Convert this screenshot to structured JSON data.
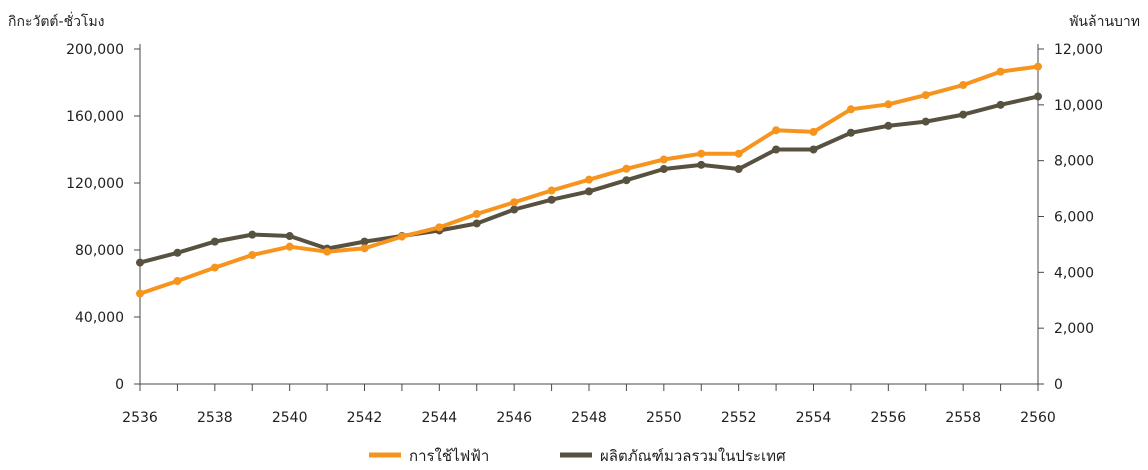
{
  "chart_data": {
    "type": "line",
    "title": "",
    "xlabel": "",
    "ylabel_left": "กิกะวัตต์-ชั่วโมง",
    "ylabel_right": "พันล้านบาท",
    "x": [
      2536,
      2537,
      2538,
      2539,
      2540,
      2541,
      2542,
      2543,
      2544,
      2545,
      2546,
      2547,
      2548,
      2549,
      2550,
      2551,
      2552,
      2553,
      2554,
      2555,
      2556,
      2557,
      2558,
      2559,
      2560
    ],
    "x_tick_labels": [
      "2536",
      "2538",
      "2540",
      "2542",
      "2544",
      "2546",
      "2548",
      "2550",
      "2552",
      "2554",
      "2556",
      "2558",
      "2560"
    ],
    "xlim": [
      2536,
      2560
    ],
    "ylim_left": [
      0,
      200000
    ],
    "ylim_right": [
      0,
      12000
    ],
    "y_left_tick_labels": [
      "0",
      "40,000",
      "80,000",
      "120,000",
      "160,000",
      "200,000"
    ],
    "y_right_tick_labels": [
      "0",
      "2,000",
      "4,000",
      "6,000",
      "8,000",
      "10,000",
      "12,000"
    ],
    "series": [
      {
        "name": "การใช้ไฟฟ้า",
        "axis": "left",
        "color": "#f7941d",
        "values": [
          54000,
          61500,
          69500,
          77000,
          82000,
          79000,
          81000,
          88000,
          93500,
          101500,
          108500,
          115500,
          122000,
          128500,
          134000,
          137500,
          137500,
          151500,
          150500,
          164000,
          167000,
          172500,
          178500,
          186500,
          189500
        ]
      },
      {
        "name": "ผลิตภัณฑ์มวลรวมในประเทศ",
        "axis": "right",
        "color": "#58513f",
        "values": [
          4350,
          4700,
          5100,
          5350,
          5300,
          4850,
          5100,
          5300,
          5500,
          5750,
          6250,
          6600,
          6900,
          7300,
          7700,
          7850,
          7700,
          8400,
          8400,
          9000,
          9250,
          9400,
          9650,
          10000,
          10300
        ]
      }
    ],
    "grid": false,
    "legend_position": "bottom-center"
  }
}
